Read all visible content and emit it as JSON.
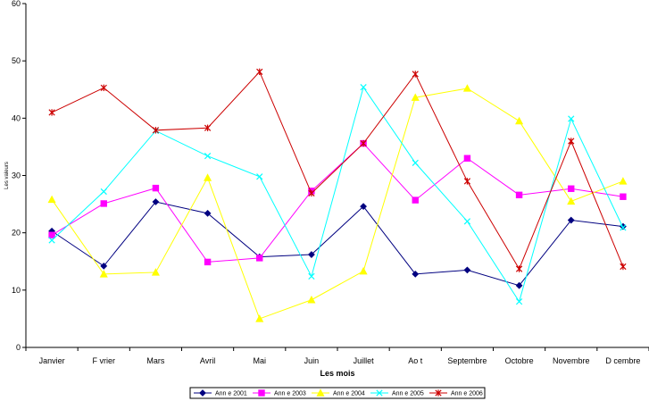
{
  "chart_data": {
    "type": "line",
    "title": "",
    "xlabel": "Les mois",
    "ylabel": "Les valeurs",
    "ylim": [
      0,
      60
    ],
    "yticks": [
      0,
      10,
      20,
      30,
      40,
      50,
      60
    ],
    "grid": false,
    "legend_position": "bottom",
    "categories": [
      "Janvier",
      "F vrier",
      "Mars",
      "Avril",
      "Mai",
      "Juin",
      "Juillet",
      "Ao  t",
      "Septembre",
      "Octobre",
      "Novembre",
      "D cembre"
    ],
    "series": [
      {
        "name": "Ann e 2001",
        "color": "#000080",
        "marker": "diamond",
        "values": [
          20.3,
          14.2,
          25.4,
          23.4,
          15.8,
          16.2,
          24.6,
          12.8,
          13.5,
          10.8,
          22.2,
          21.1
        ]
      },
      {
        "name": "Ann e 2003",
        "color": "#ff00ff",
        "marker": "square",
        "values": [
          19.6,
          25.1,
          27.8,
          14.9,
          15.6,
          27.3,
          35.6,
          25.7,
          33.0,
          26.6,
          27.7,
          26.3
        ]
      },
      {
        "name": "Ann e 2004",
        "color": "#ffff00",
        "marker": "triangle",
        "values": [
          25.8,
          12.8,
          13.1,
          29.6,
          5.0,
          8.3,
          13.3,
          43.6,
          45.2,
          39.5,
          25.5,
          29.0
        ]
      },
      {
        "name": "Ann e 2005",
        "color": "#00ffff",
        "marker": "x",
        "values": [
          18.7,
          27.2,
          37.8,
          33.4,
          29.8,
          12.4,
          45.4,
          32.2,
          22.0,
          8.0,
          39.9,
          20.9
        ]
      },
      {
        "name": "Ann e 2006",
        "color": "#cc0000",
        "marker": "star",
        "values": [
          41.0,
          45.3,
          37.9,
          38.3,
          48.1,
          26.9,
          35.6,
          47.7,
          29.0,
          13.7,
          36.0,
          14.1
        ]
      }
    ]
  }
}
